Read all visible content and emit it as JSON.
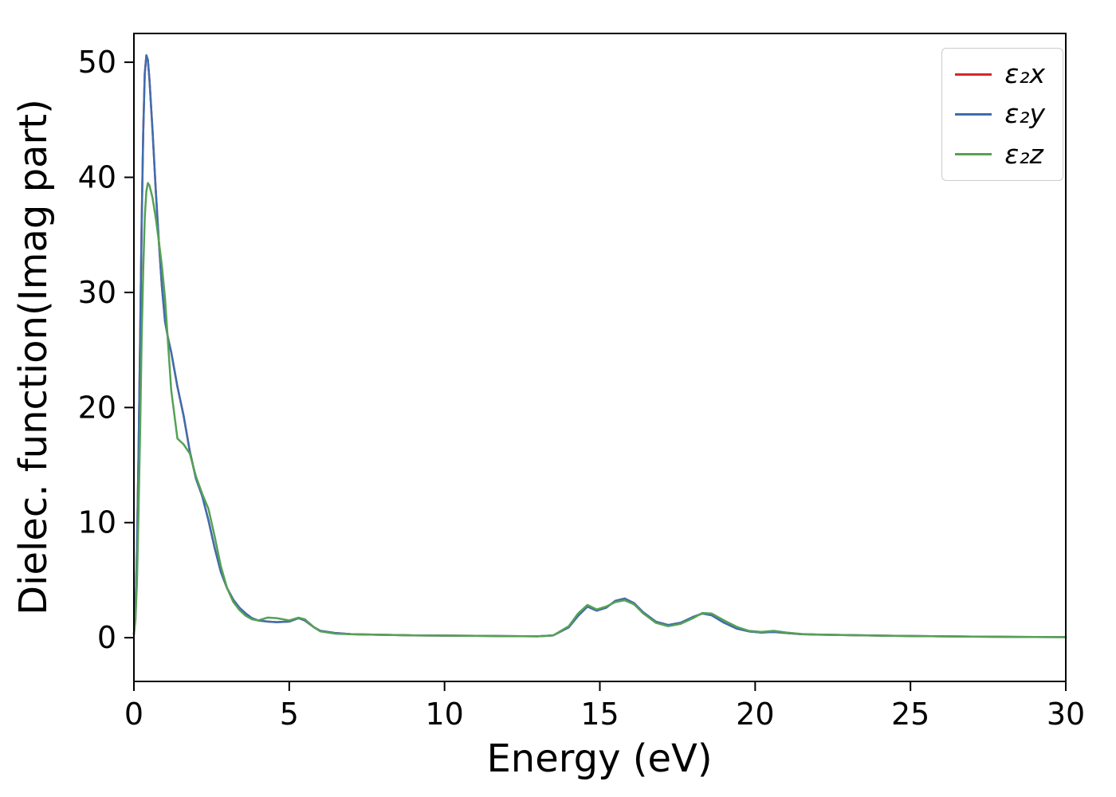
{
  "figure": {
    "background": "#ffffff",
    "axes_color": "#000000"
  },
  "chart_data": {
    "type": "line",
    "title": "",
    "xlabel": "Energy (eV)",
    "ylabel": "Dielec. function(Imag part)",
    "xlim": [
      0,
      30
    ],
    "ylim": [
      -3.8,
      52.5
    ],
    "xticks": [
      0,
      5,
      10,
      15,
      20,
      25,
      30
    ],
    "yticks": [
      0,
      10,
      20,
      30,
      40,
      50
    ],
    "grid": false,
    "legend_position": "upper right",
    "series": [
      {
        "name": "eps2x",
        "label": "ε₂x",
        "color": "#d62728",
        "x": [
          0,
          0.05,
          0.1,
          0.15,
          0.2,
          0.25,
          0.3,
          0.35,
          0.4,
          0.45,
          0.5,
          0.6,
          0.7,
          0.8,
          0.9,
          1.0,
          1.1,
          1.2,
          1.4,
          1.6,
          1.8,
          2.0,
          2.2,
          2.4,
          2.6,
          2.8,
          3.0,
          3.2,
          3.4,
          3.6,
          3.8,
          4.0,
          4.3,
          4.6,
          5.0,
          5.3,
          5.5,
          5.8,
          6.0,
          6.5,
          7.0,
          8.0,
          9.0,
          10.0,
          11.0,
          12.0,
          13.0,
          13.5,
          14.0,
          14.3,
          14.6,
          14.9,
          15.2,
          15.5,
          15.8,
          16.1,
          16.4,
          16.8,
          17.2,
          17.6,
          18.0,
          18.3,
          18.6,
          19.0,
          19.4,
          19.8,
          20.2,
          20.6,
          21.0,
          21.5,
          22.0,
          23.0,
          24.0,
          25.0,
          26.0,
          27.0,
          28.0,
          29.0,
          30.0
        ],
        "y": [
          0.3,
          2,
          8,
          16,
          26,
          36,
          44,
          49,
          50.6,
          50.2,
          48.5,
          44,
          39,
          34.5,
          30.5,
          27.5,
          26,
          24.8,
          21.8,
          19.3,
          16.2,
          13.8,
          12.3,
          10.2,
          7.8,
          5.7,
          4.3,
          3.3,
          2.6,
          2.1,
          1.7,
          1.5,
          1.4,
          1.35,
          1.4,
          1.7,
          1.5,
          0.9,
          0.6,
          0.4,
          0.3,
          0.25,
          0.2,
          0.18,
          0.16,
          0.14,
          0.12,
          0.2,
          0.9,
          1.9,
          2.7,
          2.35,
          2.6,
          3.2,
          3.4,
          3.0,
          2.2,
          1.4,
          1.1,
          1.3,
          1.8,
          2.1,
          1.95,
          1.3,
          0.8,
          0.55,
          0.45,
          0.5,
          0.4,
          0.3,
          0.27,
          0.22,
          0.18,
          0.15,
          0.12,
          0.1,
          0.08,
          0.06,
          0.05
        ]
      },
      {
        "name": "eps2y",
        "label": "ε₂y",
        "color": "#3d6eb0",
        "x": [
          0,
          0.05,
          0.1,
          0.15,
          0.2,
          0.25,
          0.3,
          0.35,
          0.4,
          0.45,
          0.5,
          0.6,
          0.7,
          0.8,
          0.9,
          1.0,
          1.1,
          1.2,
          1.4,
          1.6,
          1.8,
          2.0,
          2.2,
          2.4,
          2.6,
          2.8,
          3.0,
          3.2,
          3.4,
          3.6,
          3.8,
          4.0,
          4.3,
          4.6,
          5.0,
          5.3,
          5.5,
          5.8,
          6.0,
          6.5,
          7.0,
          8.0,
          9.0,
          10.0,
          11.0,
          12.0,
          13.0,
          13.5,
          14.0,
          14.3,
          14.6,
          14.9,
          15.2,
          15.5,
          15.8,
          16.1,
          16.4,
          16.8,
          17.2,
          17.6,
          18.0,
          18.3,
          18.6,
          19.0,
          19.4,
          19.8,
          20.2,
          20.6,
          21.0,
          21.5,
          22.0,
          23.0,
          24.0,
          25.0,
          26.0,
          27.0,
          28.0,
          29.0,
          30.0
        ],
        "y": [
          0.3,
          2,
          8,
          16,
          26,
          36,
          44,
          49,
          50.6,
          50.2,
          48.5,
          44,
          39,
          34.5,
          30.5,
          27.5,
          26,
          24.8,
          21.8,
          19.3,
          16.2,
          13.8,
          12.3,
          10.2,
          7.8,
          5.7,
          4.3,
          3.3,
          2.6,
          2.1,
          1.7,
          1.5,
          1.4,
          1.35,
          1.4,
          1.7,
          1.5,
          0.9,
          0.6,
          0.4,
          0.3,
          0.25,
          0.2,
          0.18,
          0.16,
          0.14,
          0.12,
          0.2,
          0.9,
          1.9,
          2.7,
          2.35,
          2.6,
          3.2,
          3.4,
          3.0,
          2.2,
          1.4,
          1.1,
          1.3,
          1.8,
          2.1,
          1.95,
          1.3,
          0.8,
          0.55,
          0.45,
          0.5,
          0.4,
          0.3,
          0.27,
          0.22,
          0.18,
          0.15,
          0.12,
          0.1,
          0.08,
          0.06,
          0.05
        ]
      },
      {
        "name": "eps2z",
        "label": "ε₂z",
        "color": "#55a155",
        "x": [
          0,
          0.05,
          0.1,
          0.15,
          0.2,
          0.25,
          0.3,
          0.35,
          0.4,
          0.45,
          0.5,
          0.6,
          0.7,
          0.8,
          0.9,
          1.0,
          1.1,
          1.2,
          1.4,
          1.6,
          1.8,
          2.0,
          2.2,
          2.4,
          2.6,
          2.8,
          3.0,
          3.2,
          3.4,
          3.6,
          3.8,
          4.0,
          4.3,
          4.6,
          5.0,
          5.3,
          5.5,
          5.8,
          6.0,
          6.5,
          7.0,
          8.0,
          9.0,
          10.0,
          11.0,
          12.0,
          13.0,
          13.5,
          14.0,
          14.3,
          14.6,
          14.9,
          15.2,
          15.5,
          15.8,
          16.1,
          16.4,
          16.8,
          17.2,
          17.6,
          18.0,
          18.3,
          18.6,
          19.0,
          19.4,
          19.8,
          20.2,
          20.6,
          21.0,
          21.5,
          22.0,
          23.0,
          24.0,
          25.0,
          26.0,
          27.0,
          28.0,
          29.0,
          30.0
        ],
        "y": [
          0.3,
          1.5,
          5,
          11,
          18,
          26,
          32,
          36.5,
          38.8,
          39.5,
          39.3,
          38.2,
          36.5,
          34.5,
          32.3,
          29.5,
          25.5,
          21.5,
          17.3,
          16.8,
          16.0,
          14.0,
          12.5,
          11.2,
          8.8,
          6.2,
          4.3,
          3.1,
          2.4,
          1.9,
          1.6,
          1.5,
          1.75,
          1.7,
          1.5,
          1.75,
          1.6,
          0.9,
          0.55,
          0.35,
          0.3,
          0.25,
          0.2,
          0.18,
          0.16,
          0.14,
          0.12,
          0.2,
          1.0,
          2.1,
          2.85,
          2.45,
          2.7,
          3.1,
          3.25,
          2.9,
          2.1,
          1.3,
          1.0,
          1.2,
          1.7,
          2.15,
          2.1,
          1.5,
          0.95,
          0.6,
          0.5,
          0.6,
          0.45,
          0.32,
          0.28,
          0.22,
          0.18,
          0.15,
          0.12,
          0.1,
          0.08,
          0.06,
          0.05
        ]
      }
    ]
  }
}
